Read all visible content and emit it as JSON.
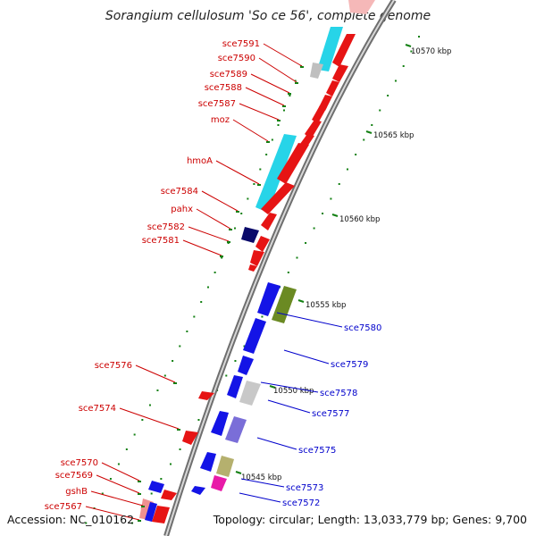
{
  "title": "Sorangium cellulosum 'So ce 56', complete genome",
  "footer": {
    "accession": "Accession: NC_010162",
    "topology": "Topology: circular; Length: 13,033,779 bp; Genes: 9,700"
  },
  "colors": {
    "left_label": "#cc0000",
    "right_label": "#0000cc",
    "backbone": "#888888",
    "tick": "#138013"
  },
  "ticks": [
    "10570 kbp",
    "10565 kbp",
    "10560 kbp",
    "10555 kbp",
    "10550 kbp",
    "10545 kbp"
  ],
  "left_genes": [
    "sce7591",
    "sce7590",
    "sce7589",
    "sce7588",
    "sce7587",
    "moz",
    "hmoA",
    "sce7584",
    "pahx",
    "sce7582",
    "sce7581",
    "sce7576",
    "sce7574",
    "sce7570",
    "sce7569",
    "gshB",
    "sce7567"
  ],
  "right_genes": [
    "sce7580",
    "sce7579",
    "sce7578",
    "sce7577",
    "sce7575",
    "sce7573",
    "sce7572"
  ]
}
